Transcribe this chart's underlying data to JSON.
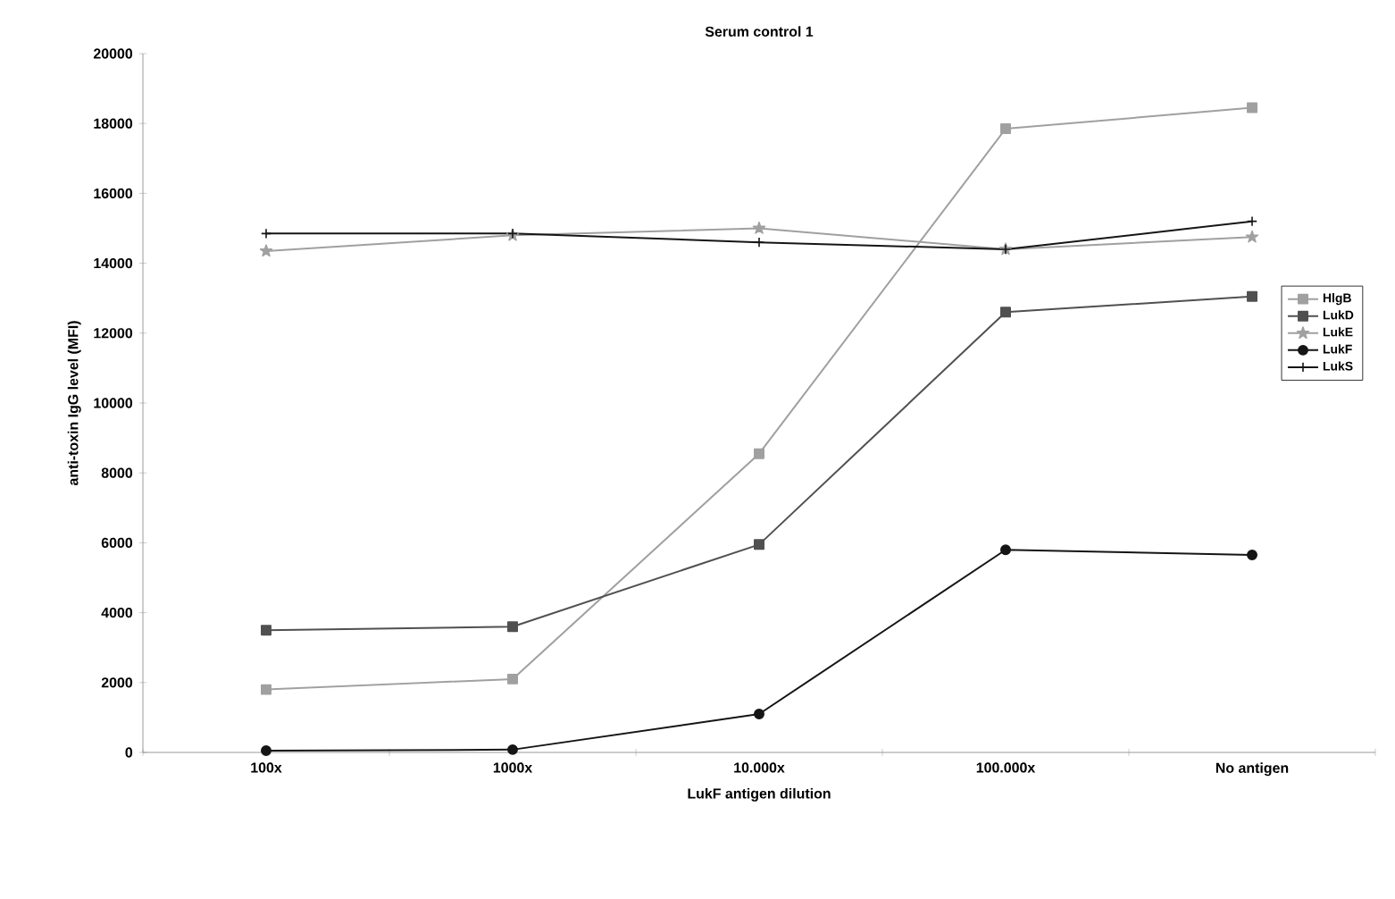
{
  "chart_data": {
    "type": "line",
    "title": "Serum control 1",
    "xlabel": "LukF antigen dilution",
    "ylabel": "anti-toxin IgG level (MFI)",
    "categories": [
      "100x",
      "1000x",
      "10.000x",
      "100.000x",
      "No antigen"
    ],
    "ylim": [
      0,
      20000
    ],
    "yticks": [
      0,
      2000,
      4000,
      6000,
      8000,
      10000,
      12000,
      14000,
      16000,
      18000,
      20000
    ],
    "grid": false,
    "legend": "right",
    "series": [
      {
        "name": "HlgB",
        "color": "#a0a0a0",
        "marker": "square",
        "values": [
          1800,
          2100,
          8550,
          17850,
          18450
        ]
      },
      {
        "name": "LukD",
        "color": "#505050",
        "marker": "square",
        "values": [
          3500,
          3600,
          5950,
          12600,
          13050
        ]
      },
      {
        "name": "LukE",
        "color": "#a0a0a0",
        "marker": "star",
        "values": [
          14350,
          14800,
          15000,
          14400,
          14750
        ]
      },
      {
        "name": "LukF",
        "color": "#151515",
        "marker": "circle",
        "values": [
          50,
          80,
          1100,
          5800,
          5650
        ]
      },
      {
        "name": "LukS",
        "color": "#151515",
        "marker": "cross",
        "values": [
          14850,
          14850,
          14600,
          14400,
          15200
        ]
      }
    ]
  }
}
